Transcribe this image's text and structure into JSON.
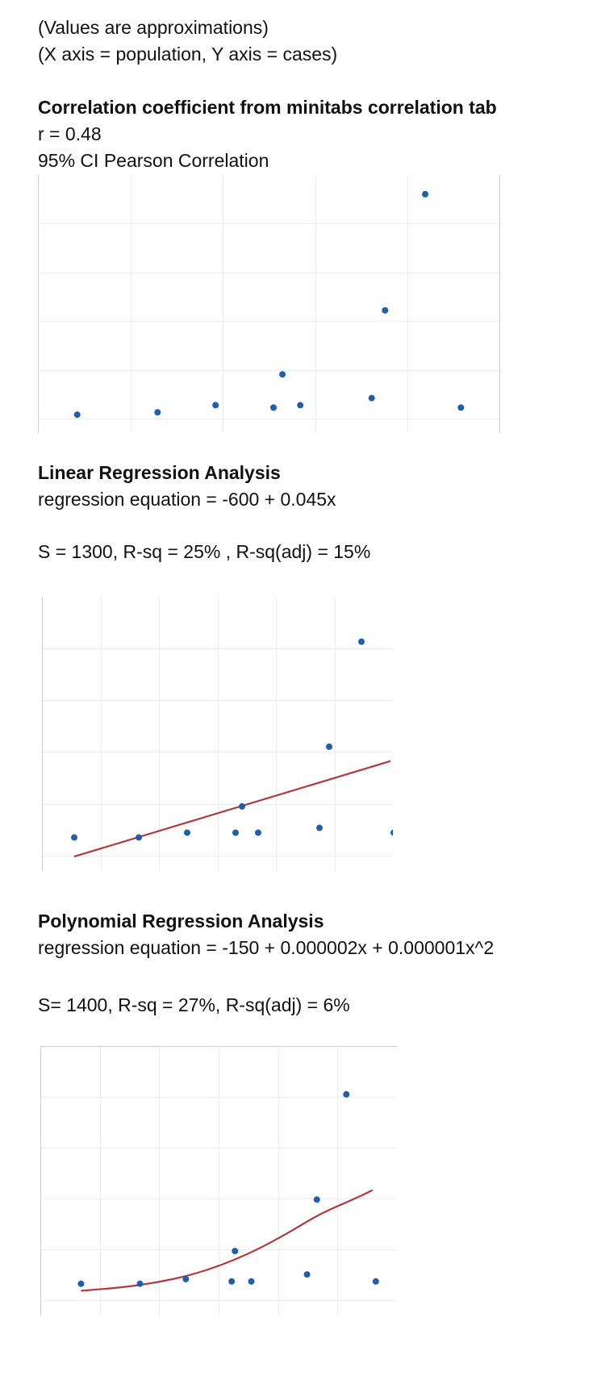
{
  "header": {
    "note": "(Values are approximations)",
    "axes_note": "(X axis = population, Y axis = cases)"
  },
  "correlation": {
    "title": "Correlation coefficient from minitabs correlation tab",
    "r_line": "r = 0.48",
    "ci_line": "95% CI Pearson Correlation"
  },
  "linear": {
    "title": "Linear Regression Analysis",
    "equation": "regression equation = -600 + 0.045x",
    "stats": "S = 1300, R-sq = 25% , R-sq(adj) = 15%"
  },
  "polynomial": {
    "title": "Polynomial Regression Analysis",
    "equation": "regression equation = -150 + 0.000002x + 0.000001x^2",
    "stats": "S= 1400, R-sq = 27%, R-sq(adj) = 6%"
  },
  "colors": {
    "point": "#1f5fad",
    "fit_line": "#b03a3a"
  },
  "chart_data": [
    {
      "type": "scatter",
      "title": "",
      "xlabel": "",
      "ylabel": "",
      "grid": true,
      "xlim": [
        0,
        100
      ],
      "ylim": [
        0,
        100
      ],
      "points": [
        {
          "x": 7,
          "y": 3
        },
        {
          "x": 25,
          "y": 4
        },
        {
          "x": 38,
          "y": 7
        },
        {
          "x": 51,
          "y": 6
        },
        {
          "x": 53,
          "y": 20
        },
        {
          "x": 57,
          "y": 7
        },
        {
          "x": 73,
          "y": 10
        },
        {
          "x": 76,
          "y": 47
        },
        {
          "x": 85,
          "y": 96
        },
        {
          "x": 93,
          "y": 6
        }
      ]
    },
    {
      "type": "scatter",
      "title": "",
      "xlabel": "",
      "ylabel": "",
      "grid": true,
      "fit": "linear",
      "xlim": [
        0,
        100
      ],
      "ylim": [
        0,
        100
      ],
      "points": [
        {
          "x": 5,
          "y": 10
        },
        {
          "x": 25,
          "y": 10
        },
        {
          "x": 40,
          "y": 12
        },
        {
          "x": 55,
          "y": 12
        },
        {
          "x": 57,
          "y": 23
        },
        {
          "x": 62,
          "y": 12
        },
        {
          "x": 81,
          "y": 14
        },
        {
          "x": 84,
          "y": 48
        },
        {
          "x": 94,
          "y": 92
        },
        {
          "x": 104,
          "y": 12
        }
      ],
      "fit_line": [
        {
          "x": 5,
          "y": 2
        },
        {
          "x": 103,
          "y": 42
        }
      ]
    },
    {
      "type": "scatter",
      "title": "",
      "xlabel": "",
      "ylabel": "",
      "grid": true,
      "fit": "polynomial",
      "xlim": [
        0,
        100
      ],
      "ylim": [
        0,
        100
      ],
      "points": [
        {
          "x": 7,
          "y": 8
        },
        {
          "x": 25,
          "y": 8
        },
        {
          "x": 39,
          "y": 10
        },
        {
          "x": 53,
          "y": 9
        },
        {
          "x": 54,
          "y": 22
        },
        {
          "x": 59,
          "y": 9
        },
        {
          "x": 76,
          "y": 12
        },
        {
          "x": 79,
          "y": 44
        },
        {
          "x": 88,
          "y": 89
        },
        {
          "x": 97,
          "y": 9
        }
      ],
      "fit_curve": [
        {
          "x": 7,
          "y": 5
        },
        {
          "x": 20,
          "y": 6.5
        },
        {
          "x": 30,
          "y": 8.5
        },
        {
          "x": 40,
          "y": 11.5
        },
        {
          "x": 50,
          "y": 16
        },
        {
          "x": 60,
          "y": 22
        },
        {
          "x": 70,
          "y": 29.5
        },
        {
          "x": 80,
          "y": 38
        },
        {
          "x": 90,
          "y": 44
        },
        {
          "x": 96,
          "y": 48
        }
      ]
    }
  ]
}
